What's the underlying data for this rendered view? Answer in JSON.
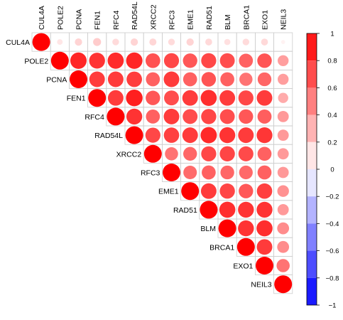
{
  "chart_data": {
    "type": "heatmap",
    "shape": "upper-triangle-circles",
    "variables": [
      "CUL4A",
      "POLE2",
      "PCNA",
      "FEN1",
      "RFC4",
      "RAD54L",
      "XRCC2",
      "RFC3",
      "EME1",
      "RAD51",
      "BLM",
      "BRCA1",
      "EXO1",
      "NEIL3"
    ],
    "matrix": [
      [
        1.0,
        0.1,
        0.17,
        0.2,
        0.14,
        0.17,
        0.16,
        0.14,
        0.17,
        0.15,
        0.12,
        0.14,
        0.15,
        0.05
      ],
      [
        null,
        1.0,
        0.85,
        0.8,
        0.83,
        0.85,
        0.68,
        0.72,
        0.66,
        0.72,
        0.7,
        0.62,
        0.67,
        0.38
      ],
      [
        null,
        null,
        1.0,
        0.77,
        0.77,
        0.76,
        0.62,
        0.77,
        0.62,
        0.67,
        0.62,
        0.55,
        0.6,
        0.38
      ],
      [
        null,
        null,
        null,
        1.0,
        0.77,
        0.88,
        0.66,
        0.7,
        0.77,
        0.82,
        0.77,
        0.72,
        0.77,
        0.33
      ],
      [
        null,
        null,
        null,
        null,
        1.0,
        0.8,
        0.62,
        0.77,
        0.7,
        0.73,
        0.7,
        0.66,
        0.63,
        0.4
      ],
      [
        null,
        null,
        null,
        null,
        null,
        1.0,
        0.72,
        0.75,
        0.77,
        0.84,
        0.8,
        0.77,
        0.79,
        0.4
      ],
      [
        null,
        null,
        null,
        null,
        null,
        null,
        1.0,
        0.55,
        0.6,
        0.72,
        0.73,
        0.71,
        0.62,
        0.4
      ],
      [
        null,
        null,
        null,
        null,
        null,
        null,
        null,
        1.0,
        0.58,
        0.62,
        0.6,
        0.59,
        0.62,
        0.4
      ],
      [
        null,
        null,
        null,
        null,
        null,
        null,
        null,
        null,
        1.0,
        0.77,
        0.73,
        0.66,
        0.75,
        0.43
      ],
      [
        null,
        null,
        null,
        null,
        null,
        null,
        null,
        null,
        null,
        1.0,
        0.82,
        0.8,
        0.8,
        0.4
      ],
      [
        null,
        null,
        null,
        null,
        null,
        null,
        null,
        null,
        null,
        null,
        1.0,
        0.8,
        0.82,
        0.45
      ],
      [
        null,
        null,
        null,
        null,
        null,
        null,
        null,
        null,
        null,
        null,
        null,
        1.0,
        0.77,
        0.45
      ],
      [
        null,
        null,
        null,
        null,
        null,
        null,
        null,
        null,
        null,
        null,
        null,
        null,
        1.0,
        0.55
      ],
      [
        null,
        null,
        null,
        null,
        null,
        null,
        null,
        null,
        null,
        null,
        null,
        null,
        null,
        1.0
      ]
    ],
    "colorbar": {
      "ticks": [
        1,
        0.8,
        0.6,
        0.4,
        0.2,
        0,
        -0.2,
        -0.4,
        -0.6,
        -0.8,
        -1
      ],
      "tick_labels": [
        "1",
        "0.8",
        "0.6",
        "0.4",
        "0.2",
        "0",
        "−0.2",
        "−0.4",
        "−0.6",
        "−0.8",
        "−1"
      ],
      "range": [
        -1,
        1
      ],
      "position": "right"
    },
    "colors": {
      "positive": "#ff0000",
      "negative": "#0000ff",
      "neutral": "#ffffff",
      "grid": "#cccccc"
    },
    "grid": true,
    "xlabel": "",
    "ylabel": ""
  }
}
